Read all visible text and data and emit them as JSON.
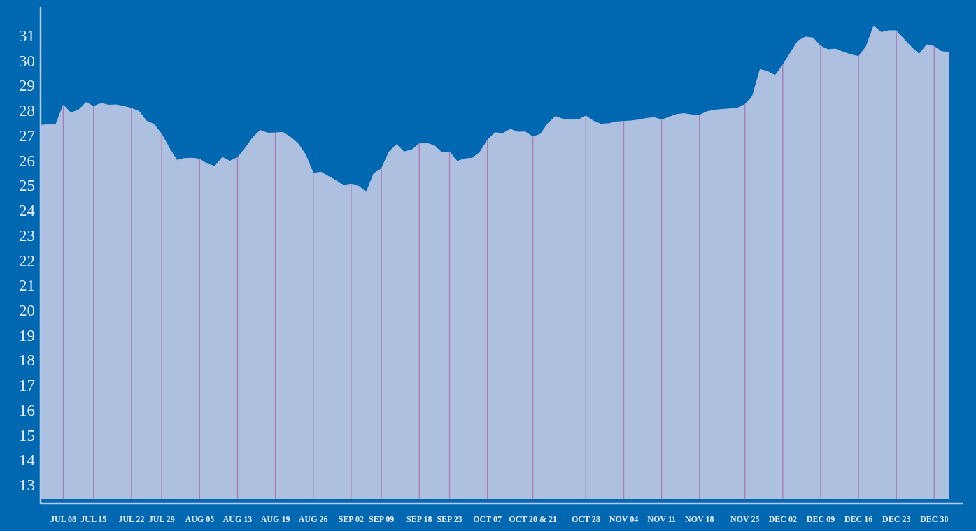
{
  "chart_data": {
    "type": "area",
    "categories": [
      null,
      null,
      null,
      "JUL 08",
      null,
      null,
      null,
      "JUL 15",
      null,
      null,
      null,
      null,
      "JUL 22",
      null,
      null,
      null,
      "JUL 29",
      null,
      null,
      null,
      null,
      "AUG 05",
      null,
      null,
      null,
      null,
      "AUG 13",
      null,
      null,
      null,
      null,
      "AUG 19",
      null,
      null,
      null,
      null,
      "AUG 26",
      null,
      null,
      null,
      null,
      "SEP 02",
      null,
      null,
      null,
      "SEP 09",
      null,
      null,
      null,
      null,
      "SEP 18",
      null,
      null,
      null,
      "SEP 23",
      null,
      null,
      null,
      null,
      "OCT 07",
      null,
      null,
      null,
      null,
      null,
      "OCT 20 & 21",
      null,
      null,
      null,
      null,
      null,
      null,
      "OCT 28",
      null,
      null,
      null,
      null,
      "NOV 04",
      null,
      null,
      null,
      null,
      "NOV 11",
      null,
      null,
      null,
      null,
      "NOV 18",
      null,
      null,
      null,
      null,
      null,
      "NOV 25",
      null,
      null,
      null,
      null,
      "DEC 02",
      null,
      null,
      null,
      null,
      "DEC 09",
      null,
      null,
      null,
      null,
      "DEC 16",
      null,
      null,
      null,
      null,
      "DEC 23",
      null,
      null,
      null,
      null,
      "DEC 30",
      null,
      null
    ],
    "values": [
      27.46,
      27.49,
      27.49,
      28.27,
      27.96,
      28.07,
      28.38,
      28.22,
      28.34,
      28.27,
      28.28,
      28.22,
      28.14,
      28.02,
      27.63,
      27.5,
      27.1,
      26.55,
      26.06,
      26.14,
      26.15,
      26.11,
      25.92,
      25.82,
      26.18,
      26.03,
      26.17,
      26.54,
      26.97,
      27.26,
      27.15,
      27.16,
      27.18,
      26.99,
      26.73,
      26.28,
      25.53,
      25.59,
      25.42,
      25.25,
      25.04,
      25.08,
      25.03,
      24.78,
      25.53,
      25.72,
      26.39,
      26.7,
      26.4,
      26.48,
      26.72,
      26.74,
      26.65,
      26.37,
      26.4,
      26.02,
      26.12,
      26.15,
      26.38,
      26.87,
      27.17,
      27.13,
      27.31,
      27.19,
      27.2,
      27.0,
      27.11,
      27.54,
      27.82,
      27.7,
      27.69,
      27.68,
      27.84,
      27.63,
      27.51,
      27.53,
      27.6,
      27.62,
      27.64,
      27.68,
      27.74,
      27.77,
      27.68,
      27.79,
      27.9,
      27.93,
      27.88,
      27.87,
      28.01,
      28.07,
      28.1,
      28.12,
      28.15,
      28.3,
      28.63,
      29.7,
      29.62,
      29.46,
      29.88,
      30.36,
      30.84,
      31.0,
      30.96,
      30.63,
      30.49,
      30.52,
      30.39,
      30.29,
      30.22,
      30.61,
      31.44,
      31.18,
      31.25,
      31.25,
      30.91,
      30.59,
      30.31,
      30.69,
      30.62,
      30.41,
      30.39
    ],
    "color": "#aec0e0",
    "ylim": [
      12.5,
      32.2
    ],
    "yticks": [
      13,
      14,
      15,
      16,
      17,
      18,
      19,
      20,
      21,
      22,
      23,
      24,
      25,
      26,
      27,
      28,
      29,
      30,
      31
    ],
    "grid": "x"
  }
}
